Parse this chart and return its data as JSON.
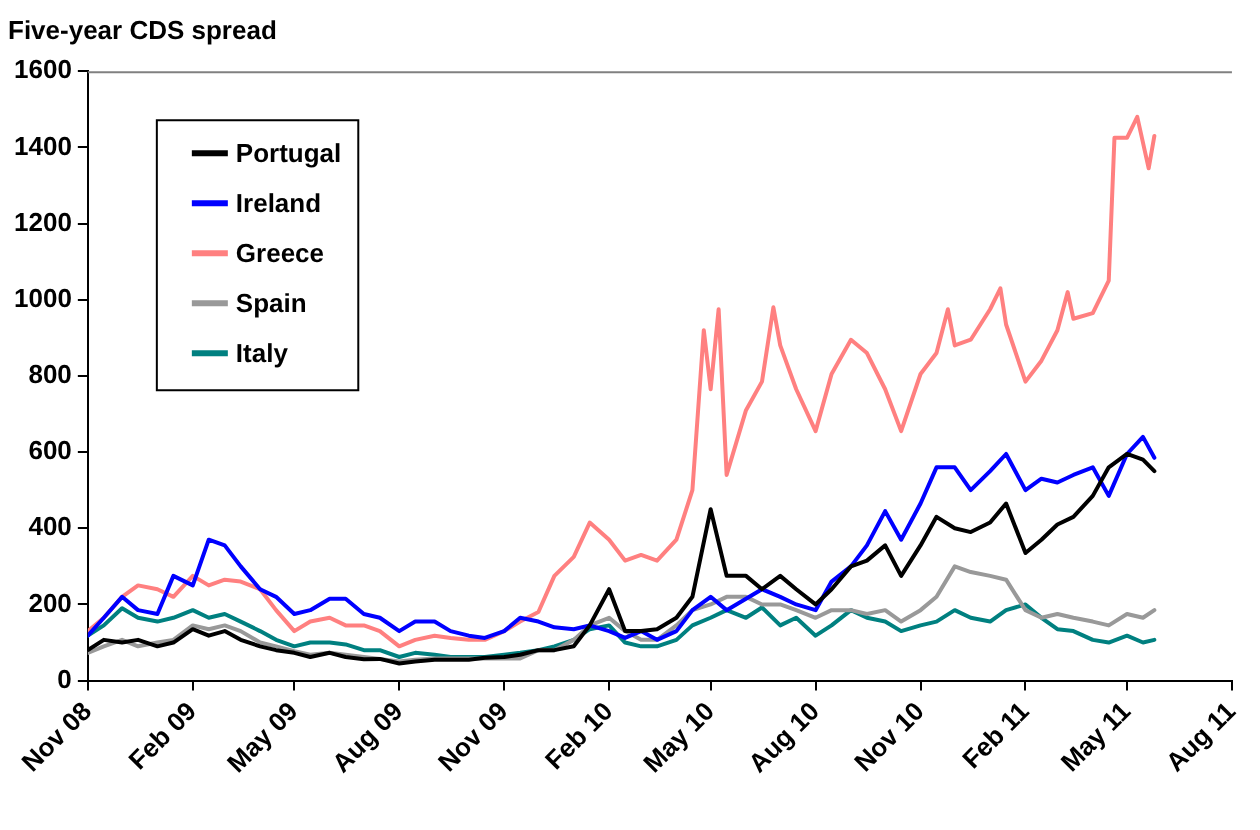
{
  "chart_data": {
    "type": "line",
    "title": "Five-year CDS spread",
    "legend": "top left",
    "grid": false,
    "marker": "none",
    "line_style": "solid",
    "xlim": [
      "2008-11-01",
      "2011-08-01"
    ],
    "xticks": [
      {
        "value": "2008-11-01",
        "label": "Nov 08"
      },
      {
        "value": "2009-02-01",
        "label": "Feb 09"
      },
      {
        "value": "2009-05-01",
        "label": "May 09"
      },
      {
        "value": "2009-08-01",
        "label": "Aug 09"
      },
      {
        "value": "2009-11-01",
        "label": "Nov 09"
      },
      {
        "value": "2010-02-01",
        "label": "Feb 10"
      },
      {
        "value": "2010-05-01",
        "label": "May 10"
      },
      {
        "value": "2010-08-01",
        "label": "Aug 10"
      },
      {
        "value": "2010-11-01",
        "label": "Nov 10"
      },
      {
        "value": "2011-02-01",
        "label": "Feb 11"
      },
      {
        "value": "2011-05-01",
        "label": "May 11"
      },
      {
        "value": "2011-08-01",
        "label": "Aug 11"
      }
    ],
    "ylim": [
      0,
      1600
    ],
    "yticks": [
      0,
      200,
      400,
      600,
      800,
      1000,
      1200,
      1400,
      1600
    ],
    "x": [
      "2008-11-01",
      "2008-11-15",
      "2008-12-01",
      "2008-12-15",
      "2009-01-01",
      "2009-01-15",
      "2009-02-01",
      "2009-02-15",
      "2009-03-01",
      "2009-03-15",
      "2009-04-01",
      "2009-04-15",
      "2009-05-01",
      "2009-05-15",
      "2009-06-01",
      "2009-06-15",
      "2009-07-01",
      "2009-07-15",
      "2009-08-01",
      "2009-08-15",
      "2009-09-01",
      "2009-09-15",
      "2009-10-01",
      "2009-10-15",
      "2009-11-01",
      "2009-11-15",
      "2009-12-01",
      "2009-12-15",
      "2010-01-01",
      "2010-01-15",
      "2010-02-01",
      "2010-02-15",
      "2010-03-01",
      "2010-03-15",
      "2010-04-01",
      "2010-04-15",
      "2010-05-01",
      "2010-05-15",
      "2010-06-01",
      "2010-06-15",
      "2010-07-01",
      "2010-07-15",
      "2010-08-01",
      "2010-08-15",
      "2010-09-01",
      "2010-09-15",
      "2010-10-01",
      "2010-10-15",
      "2010-11-01",
      "2010-11-15",
      "2010-12-01",
      "2010-12-15",
      "2011-01-01",
      "2011-01-15",
      "2011-02-01",
      "2011-02-15",
      "2011-03-01",
      "2011-03-15",
      "2011-04-01",
      "2011-04-15",
      "2011-05-01",
      "2011-05-15",
      "2011-05-25"
    ],
    "series": [
      {
        "name": "Portugal",
        "color": "#000000",
        "values": [
          80,
          107,
          100,
          107,
          90,
          100,
          135,
          118,
          130,
          107,
          90,
          80,
          73,
          62,
          73,
          62,
          56,
          57,
          45,
          50,
          55,
          55,
          55,
          60,
          62,
          68,
          80,
          80,
          90,
          145,
          240,
          130,
          130,
          135,
          165,
          220,
          450,
          275,
          275,
          240,
          275,
          240,
          200,
          240,
          300,
          315,
          355,
          275,
          355,
          430,
          400,
          390,
          415,
          465,
          335,
          370,
          410,
          430,
          485,
          560,
          595,
          580,
          550
        ]
      },
      {
        "name": "Ireland",
        "color": "#0000ff",
        "values": [
          118,
          165,
          220,
          185,
          175,
          275,
          250,
          370,
          355,
          300,
          240,
          220,
          175,
          185,
          215,
          215,
          175,
          165,
          130,
          155,
          155,
          130,
          118,
          112,
          130,
          165,
          155,
          140,
          135,
          145,
          130,
          112,
          130,
          107,
          130,
          185,
          220,
          185,
          215,
          240,
          220,
          200,
          185,
          260,
          300,
          355,
          445,
          370,
          465,
          560,
          560,
          500,
          550,
          595,
          500,
          530,
          520,
          540,
          560,
          485,
          595,
          640,
          585
        ]
      },
      {
        "name": "Greece",
        "color": "#ff8080",
        "x": [
          "2008-11-01",
          "2008-11-15",
          "2008-12-01",
          "2008-12-15",
          "2009-01-01",
          "2009-01-15",
          "2009-02-01",
          "2009-02-15",
          "2009-03-01",
          "2009-03-15",
          "2009-04-01",
          "2009-04-15",
          "2009-05-01",
          "2009-05-15",
          "2009-06-01",
          "2009-06-15",
          "2009-07-01",
          "2009-07-15",
          "2009-08-01",
          "2009-08-15",
          "2009-09-01",
          "2009-09-15",
          "2009-10-01",
          "2009-10-15",
          "2009-11-01",
          "2009-11-15",
          "2009-12-01",
          "2009-12-15",
          "2010-01-01",
          "2010-01-15",
          "2010-02-01",
          "2010-02-15",
          "2010-03-01",
          "2010-03-15",
          "2010-04-01",
          "2010-04-15",
          "2010-04-25",
          "2010-05-01",
          "2010-05-08",
          "2010-05-15",
          "2010-06-01",
          "2010-06-15",
          "2010-06-25",
          "2010-07-01",
          "2010-07-15",
          "2010-08-01",
          "2010-08-15",
          "2010-09-01",
          "2010-09-15",
          "2010-10-01",
          "2010-10-15",
          "2010-11-01",
          "2010-11-15",
          "2010-11-25",
          "2010-12-01",
          "2010-12-15",
          "2011-01-01",
          "2011-01-10",
          "2011-01-15",
          "2011-02-01",
          "2011-02-15",
          "2011-03-01",
          "2011-03-10",
          "2011-03-15",
          "2011-04-01",
          "2011-04-15",
          "2011-04-20",
          "2011-05-01",
          "2011-05-10",
          "2011-05-20",
          "2011-05-25"
        ],
        "values": [
          130,
          165,
          220,
          250,
          240,
          220,
          275,
          250,
          265,
          260,
          240,
          185,
          130,
          155,
          165,
          145,
          145,
          130,
          90,
          107,
          118,
          112,
          107,
          107,
          130,
          155,
          180,
          275,
          325,
          415,
          370,
          315,
          330,
          315,
          370,
          500,
          920,
          765,
          975,
          540,
          710,
          785,
          980,
          880,
          765,
          655,
          805,
          895,
          860,
          765,
          655,
          805,
          860,
          975,
          880,
          895,
          975,
          1030,
          935,
          785,
          840,
          920,
          1020,
          950,
          965,
          1050,
          1425,
          1425,
          1480,
          1345,
          1430
        ]
      },
      {
        "name": "Spain",
        "color": "#999999",
        "values": [
          73,
          90,
          107,
          90,
          100,
          107,
          145,
          135,
          145,
          130,
          100,
          90,
          77,
          68,
          73,
          68,
          62,
          57,
          50,
          55,
          58,
          58,
          58,
          58,
          58,
          58,
          80,
          80,
          107,
          145,
          165,
          130,
          107,
          107,
          145,
          185,
          200,
          220,
          220,
          200,
          200,
          185,
          165,
          185,
          185,
          175,
          185,
          155,
          185,
          220,
          300,
          285,
          275,
          265,
          185,
          165,
          175,
          165,
          155,
          145,
          175,
          165,
          185
        ]
      },
      {
        "name": "Italy",
        "color": "#008080",
        "values": [
          118,
          145,
          190,
          165,
          155,
          165,
          185,
          165,
          175,
          155,
          130,
          107,
          90,
          100,
          100,
          95,
          80,
          80,
          62,
          73,
          68,
          62,
          62,
          62,
          68,
          73,
          80,
          90,
          107,
          135,
          145,
          100,
          90,
          90,
          107,
          145,
          165,
          185,
          165,
          192,
          145,
          165,
          118,
          145,
          185,
          165,
          155,
          130,
          145,
          155,
          185,
          165,
          155,
          185,
          200,
          165,
          135,
          130,
          107,
          100,
          118,
          100,
          107
        ]
      }
    ]
  }
}
